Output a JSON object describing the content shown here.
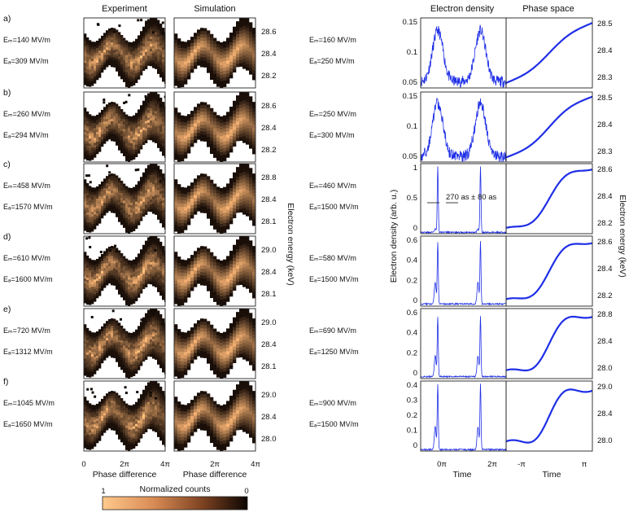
{
  "column_titles": {
    "experiment": "Experiment",
    "simulation": "Simulation",
    "density": "Electron density",
    "phase": "Phase space"
  },
  "axis_labels": {
    "phase_difference": "Phase difference",
    "time": "Time",
    "energy_left": "Electron energy (keV)",
    "density_y": "Electron density (arb. u.)",
    "energy_right": "Electron energy (keV)"
  },
  "colorbar": {
    "title": "Normalized counts",
    "left_label": "1",
    "right_label": "0"
  },
  "colors": {
    "curve": "#1f2fe6",
    "map_bright": "#ffc78a",
    "map_dark": "#1a0e08",
    "background": "#ffffff"
  },
  "annotation": {
    "text": "270 as ± 80 as"
  },
  "x_ticks_maps": [
    "0",
    "2π",
    "4π"
  ],
  "x_ticks_density": [
    "0π",
    "2π"
  ],
  "x_ticks_phase": [
    "-π",
    "π"
  ],
  "rows": [
    {
      "label": "a)",
      "exp_em": "Eₘ=140 MV/m",
      "exp_ea": "Eₐ=309 MV/m",
      "sim_em": "Eₘ=160 MV/m",
      "sim_ea": "Eₐ=250 MV/m",
      "energy_ticks": [
        "28.6",
        "28.4",
        "28.2"
      ],
      "density_ticks": [
        "0.15",
        "0.1",
        "0.05"
      ],
      "phase_ticks": [
        "28.5",
        "28.4",
        "28.3"
      ]
    },
    {
      "label": "b)",
      "exp_em": "Eₘ=260 MV/m",
      "exp_ea": "Eₐ=294 MV/m",
      "sim_em": "Eₘ=250 MV/m",
      "sim_ea": "Eₐ=300 MV/m",
      "energy_ticks": [
        "28.6",
        "28.4",
        "28.2"
      ],
      "density_ticks": [
        "0.15",
        "0.1",
        "0.05"
      ],
      "phase_ticks": [
        "28.5",
        "28.4",
        "28.3"
      ]
    },
    {
      "label": "c)",
      "exp_em": "Eₘ=458 MV/m",
      "exp_ea": "Eₐ=1570 MV/m",
      "sim_em": "Eₘ=460 MV/m",
      "sim_ea": "Eₐ=1500 MV/m",
      "energy_ticks": [
        "28.8",
        "28.4",
        "28.1"
      ],
      "density_ticks": [
        "1",
        "0.5",
        "0"
      ],
      "phase_ticks": [
        "28.6",
        "28.4",
        "28.2"
      ]
    },
    {
      "label": "d)",
      "exp_em": "Eₘ=610 MV/m",
      "exp_ea": "Eₐ=1600 MV/m",
      "sim_em": "Eₘ=580 MV/m",
      "sim_ea": "Eₐ=1500 MV/m",
      "energy_ticks": [
        "29.0",
        "28.4",
        "28.1"
      ],
      "density_ticks": [
        "0.6",
        "0.4",
        "0.2",
        "0"
      ],
      "phase_ticks": [
        "28.6",
        "28.4",
        "28.2"
      ]
    },
    {
      "label": "e)",
      "exp_em": "Eₘ=720 MV/m",
      "exp_ea": "Eₐ=1312 MV/m",
      "sim_em": "Eₘ=690 MV/m",
      "sim_ea": "Eₐ=1250 MV/m",
      "energy_ticks": [
        "29.0",
        "28.4",
        "28.1"
      ],
      "density_ticks": [
        "0.6",
        "0.4",
        "0.2",
        "0"
      ],
      "phase_ticks": [
        "28.8",
        "28.4",
        "28.0"
      ]
    },
    {
      "label": "f)",
      "exp_em": "Eₘ=1045 MV/m",
      "exp_ea": "Eₐ=1650 MV/m",
      "sim_em": "Eₘ=900 MV/m",
      "sim_ea": "Eₐ=1500 MV/m",
      "energy_ticks": [
        "29.0",
        "28.4",
        "28.0"
      ],
      "density_ticks": [
        "0.4",
        "0.3",
        "0.2",
        "0.1",
        "0"
      ],
      "phase_ticks": [
        "29.0",
        "28.4",
        "28.0"
      ]
    }
  ],
  "chart_data": [
    {
      "type": "heatmap",
      "title": "Experiment",
      "xlabel": "Phase difference",
      "ylabel": "Electron energy (keV)",
      "xlim_pi": [
        0,
        4
      ],
      "panels": [
        "a)",
        "b)",
        "c)",
        "d)",
        "e)",
        "f)"
      ]
    },
    {
      "type": "heatmap",
      "title": "Simulation",
      "xlabel": "Phase difference",
      "ylabel": "Electron energy (keV)",
      "xlim_pi": [
        0,
        4
      ],
      "panels": [
        "a)",
        "b)",
        "c)",
        "d)",
        "e)",
        "f)"
      ]
    },
    {
      "type": "line",
      "title": "Electron density",
      "xlabel": "Time",
      "ylabel": "Electron density (arb. u.)",
      "peaks_at_pi": [
        0,
        2
      ],
      "panels": [
        {
          "row": "a)",
          "ylim": [
            0.04,
            0.15
          ],
          "peak": 0.13,
          "baseline": 0.05
        },
        {
          "row": "b)",
          "ylim": [
            0.04,
            0.17
          ],
          "peak": 0.15,
          "baseline": 0.05
        },
        {
          "row": "c)",
          "ylim": [
            0,
            1.05
          ],
          "peak": 1.0,
          "baseline": 0.02
        },
        {
          "row": "d)",
          "ylim": [
            0,
            0.65
          ],
          "peak": 0.6,
          "baseline": 0.02
        },
        {
          "row": "e)",
          "ylim": [
            0,
            0.7
          ],
          "peak": 0.62,
          "baseline": 0.02
        },
        {
          "row": "f)",
          "ylim": [
            0,
            0.47
          ],
          "peak": 0.45,
          "baseline": 0.01
        }
      ]
    },
    {
      "type": "scatter",
      "title": "Phase space",
      "xlabel": "Time",
      "ylabel": "Electron energy (keV)",
      "xlim_pi": [
        -1.3,
        1.3
      ],
      "panels": [
        {
          "row": "a)",
          "ylim": [
            28.25,
            28.52
          ]
        },
        {
          "row": "b)",
          "ylim": [
            28.25,
            28.52
          ]
        },
        {
          "row": "c)",
          "ylim": [
            28.1,
            28.65
          ]
        },
        {
          "row": "d)",
          "ylim": [
            28.1,
            28.7
          ]
        },
        {
          "row": "e)",
          "ylim": [
            27.9,
            28.95
          ]
        },
        {
          "row": "f)",
          "ylim": [
            27.9,
            29.15
          ]
        }
      ]
    }
  ]
}
